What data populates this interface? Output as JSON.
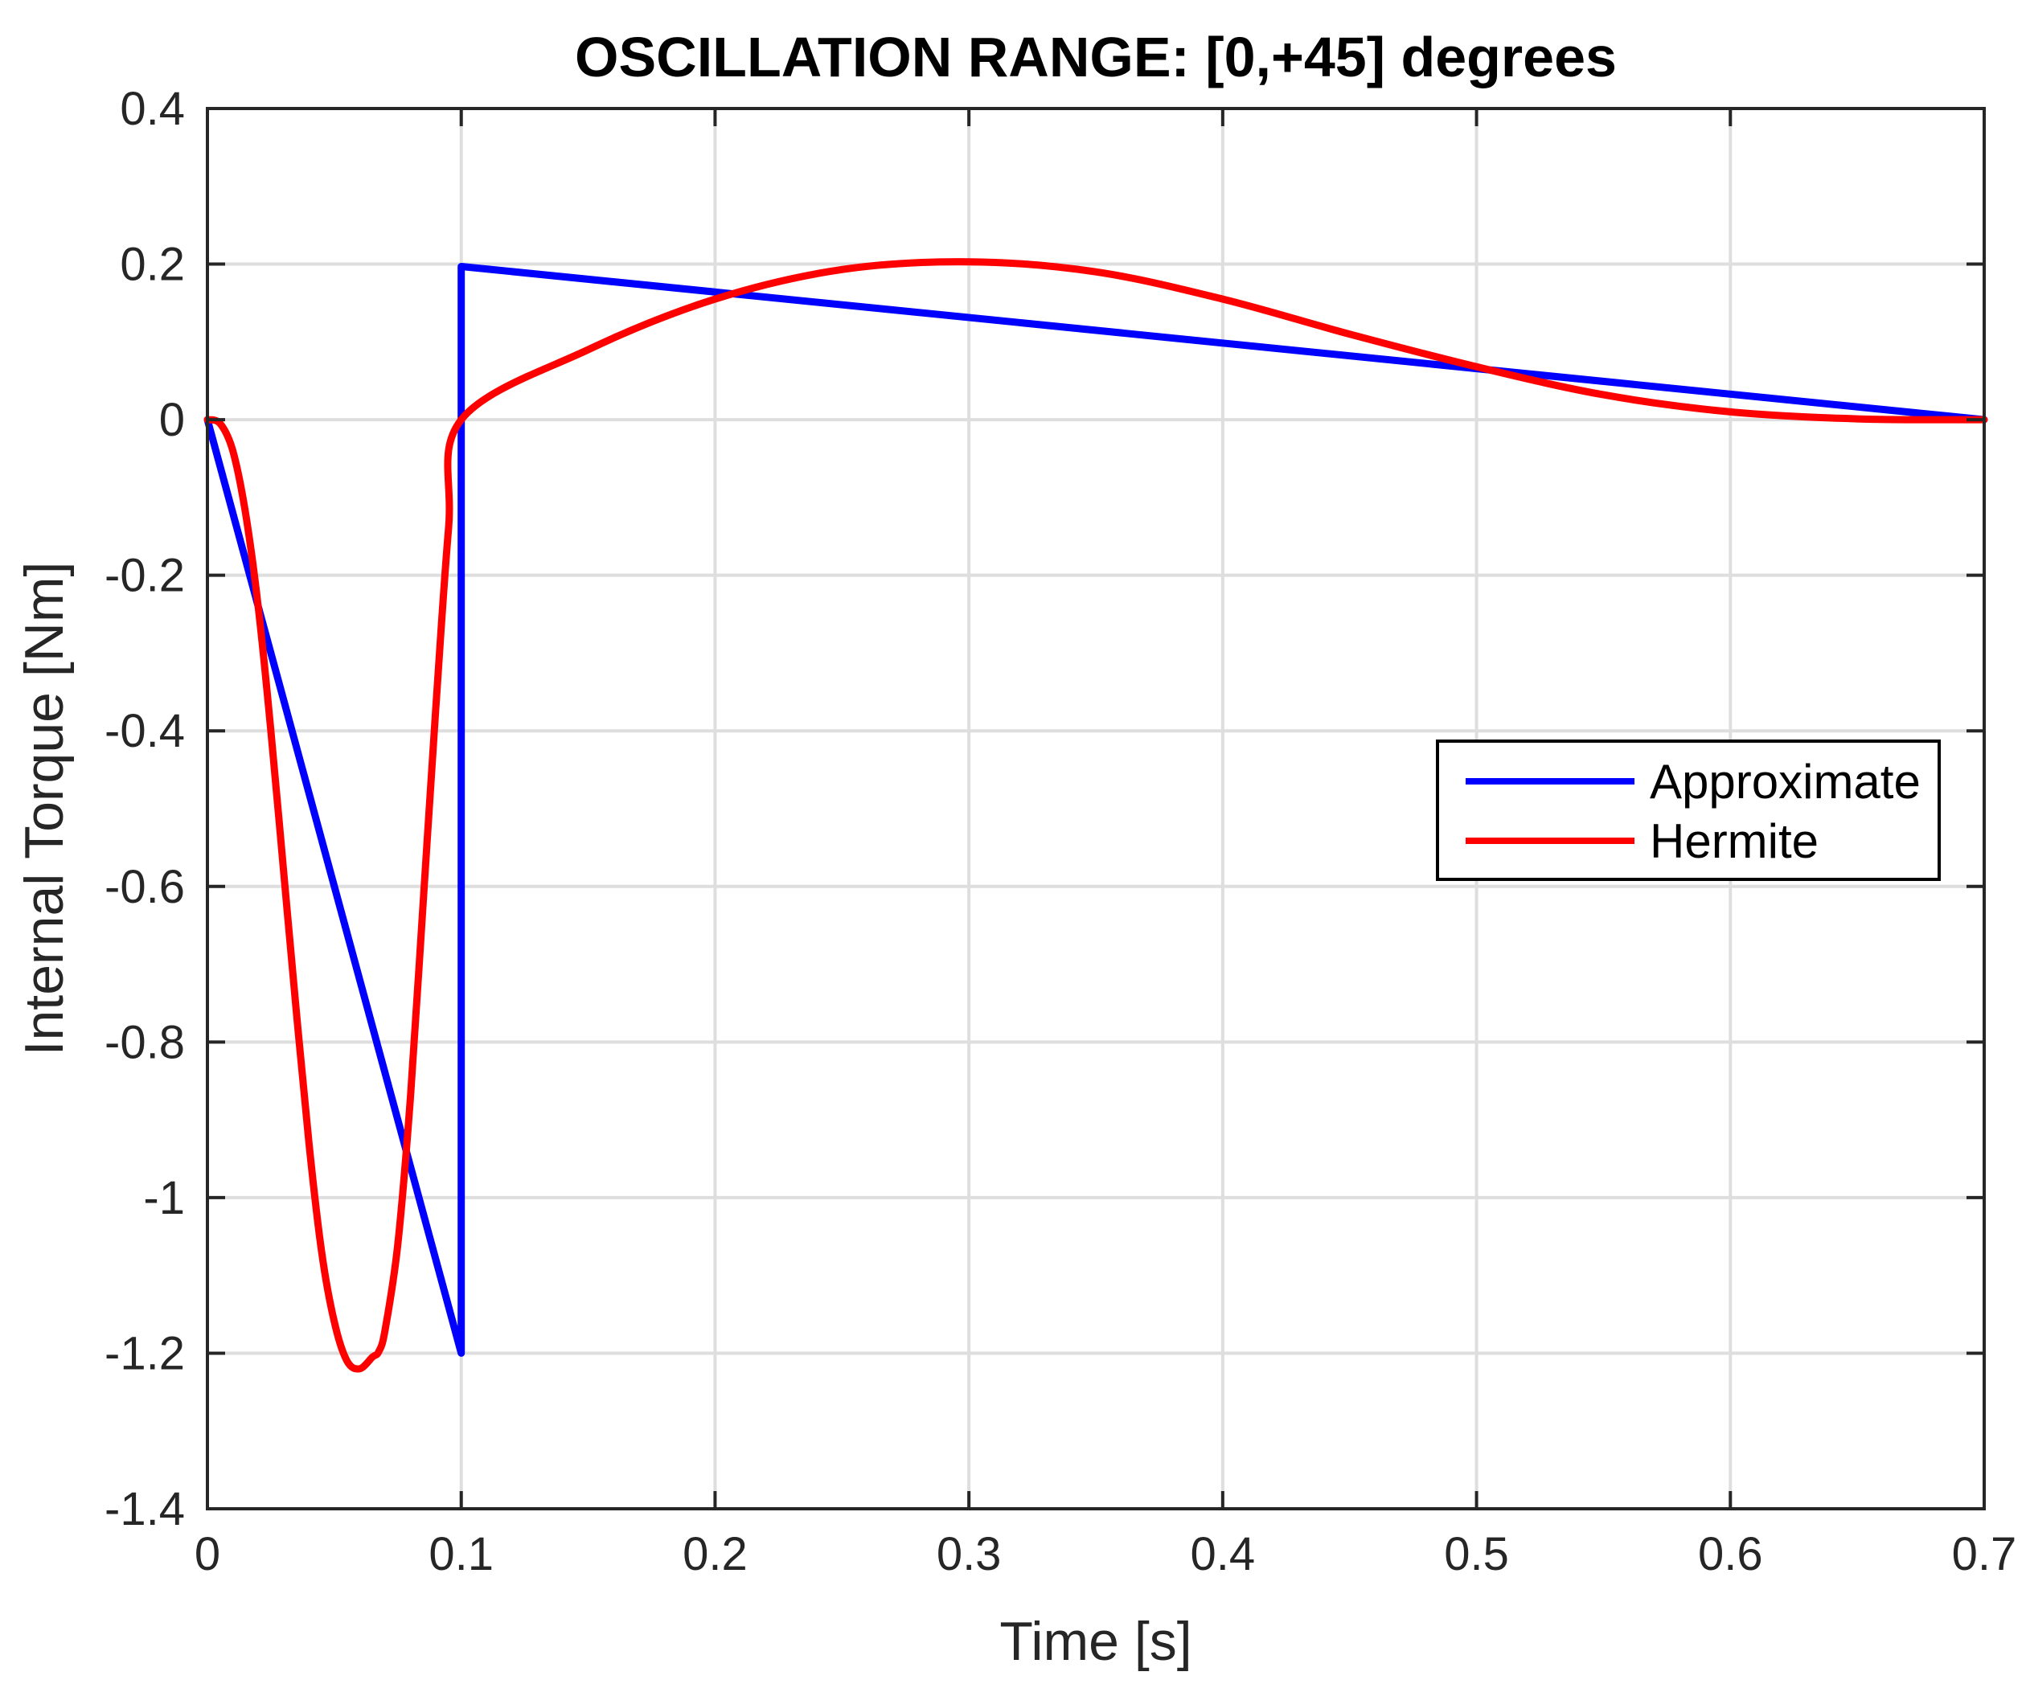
{
  "chart_data": {
    "type": "line",
    "title": "OSCILLATION RANGE: [0,+45] degrees",
    "xlabel": "Time [s]",
    "ylabel": "Internal Torque [Nm]",
    "xlim": [
      0,
      0.7
    ],
    "ylim": [
      -1.4,
      0.4
    ],
    "xticks": [
      0,
      0.1,
      0.2,
      0.3,
      0.4,
      0.5,
      0.6,
      0.7
    ],
    "xtick_labels": [
      "0",
      "0.1",
      "0.2",
      "0.3",
      "0.4",
      "0.5",
      "0.6",
      "0.7"
    ],
    "yticks": [
      -1.4,
      -1.2,
      -1,
      -0.8,
      -0.6,
      -0.4,
      -0.2,
      0,
      0.2,
      0.4
    ],
    "ytick_labels": [
      "-1.4",
      "-1.2",
      "-1",
      "-0.8",
      "-0.6",
      "-0.4",
      "-0.2",
      "0",
      "0.2",
      "0.4"
    ],
    "grid": true,
    "legend_position": "right",
    "series": [
      {
        "name": "Approximate",
        "color": "#0000ff",
        "x": [
          0,
          0.1,
          0.1,
          0.7
        ],
        "y": [
          0,
          -1.2,
          0.197,
          0
        ]
      },
      {
        "name": "Hermite",
        "color": "#ff0000",
        "x": [
          0,
          0.005,
          0.01,
          0.015,
          0.02,
          0.025,
          0.03,
          0.035,
          0.04,
          0.045,
          0.05,
          0.055,
          0.06,
          0.065,
          0.0675,
          0.07,
          0.075,
          0.08,
          0.085,
          0.09,
          0.095,
          0.1,
          0.15,
          0.2,
          0.25,
          0.3,
          0.35,
          0.4,
          0.45,
          0.5,
          0.55,
          0.6,
          0.65,
          0.7
        ],
        "y": [
          0,
          -0.005,
          -0.04,
          -0.12,
          -0.24,
          -0.4,
          -0.58,
          -0.76,
          -0.93,
          -1.07,
          -1.16,
          -1.21,
          -1.22,
          -1.205,
          -1.198,
          -1.17,
          -1.06,
          -0.87,
          -0.62,
          -0.37,
          -0.14,
          0,
          0.09,
          0.155,
          0.193,
          0.203,
          0.19,
          0.155,
          0.11,
          0.068,
          0.032,
          0.01,
          0.001,
          0
        ]
      }
    ]
  }
}
